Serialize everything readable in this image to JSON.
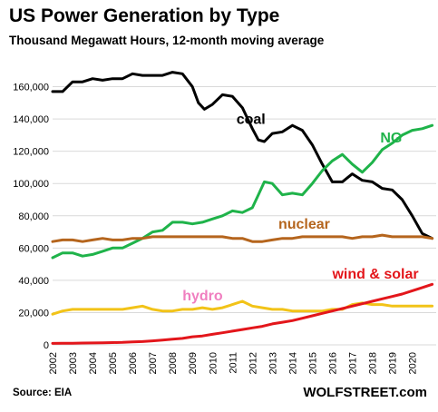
{
  "title": "US Power Generation by Type",
  "subtitle": "Thousand Megawatt Hours, 12-month moving average",
  "source": "Source: EIA",
  "brand": "WOLFSTREET.com",
  "chart_data": {
    "type": "line",
    "title": "US Power Generation by Type",
    "subtitle": "Thousand Megawatt Hours, 12-month moving average",
    "ylim": [
      0,
      180000
    ],
    "xlim": [
      2002,
      2021.2
    ],
    "ytick_labels": [
      "0",
      "20,000",
      "40,000",
      "60,000",
      "80,000",
      "100,000",
      "120,000",
      "140,000",
      "160,000"
    ],
    "ytick_values": [
      0,
      20000,
      40000,
      60000,
      80000,
      100000,
      120000,
      140000,
      160000
    ],
    "xtick_labels": [
      "2002",
      "2003",
      "2004",
      "2005",
      "2006",
      "2007",
      "2008",
      "2009",
      "2010",
      "2011",
      "2012",
      "2013",
      "2014",
      "2015",
      "2016",
      "2017",
      "2018",
      "2019",
      "2020"
    ],
    "grid": true,
    "series": [
      {
        "name": "coal",
        "color": "#000000",
        "x": [
          2002.0,
          2002.5,
          2003.0,
          2003.5,
          2004.0,
          2004.5,
          2005.0,
          2005.5,
          2006.0,
          2006.5,
          2007.0,
          2007.5,
          2008.0,
          2008.5,
          2009.0,
          2009.3,
          2009.6,
          2010.0,
          2010.5,
          2011.0,
          2011.5,
          2012.0,
          2012.3,
          2012.6,
          2013.0,
          2013.5,
          2014.0,
          2014.5,
          2015.0,
          2015.5,
          2016.0,
          2016.5,
          2017.0,
          2017.5,
          2018.0,
          2018.5,
          2019.0,
          2019.5,
          2020.0,
          2020.5,
          2021.0
        ],
        "values": [
          157000,
          157000,
          163000,
          163000,
          165000,
          164000,
          165000,
          165000,
          168000,
          167000,
          167000,
          167000,
          169000,
          168000,
          160000,
          150000,
          146000,
          149000,
          155000,
          154000,
          147000,
          134000,
          127000,
          126000,
          131000,
          132000,
          136000,
          133000,
          124000,
          112000,
          101000,
          101000,
          106000,
          102000,
          101000,
          97000,
          96000,
          90000,
          80000,
          69000,
          66000
        ]
      },
      {
        "name": "NG",
        "color": "#1fb34a",
        "x": [
          2002.0,
          2002.5,
          2003.0,
          2003.5,
          2004.0,
          2004.5,
          2005.0,
          2005.5,
          2006.0,
          2006.5,
          2007.0,
          2007.5,
          2008.0,
          2008.5,
          2009.0,
          2009.5,
          2010.0,
          2010.5,
          2011.0,
          2011.5,
          2012.0,
          2012.3,
          2012.6,
          2013.0,
          2013.5,
          2014.0,
          2014.5,
          2015.0,
          2015.5,
          2016.0,
          2016.5,
          2017.0,
          2017.5,
          2018.0,
          2018.5,
          2019.0,
          2019.5,
          2020.0,
          2020.5,
          2021.0
        ],
        "values": [
          54000,
          57000,
          57000,
          55000,
          56000,
          58000,
          60000,
          60000,
          63000,
          66000,
          70000,
          71000,
          76000,
          76000,
          75000,
          76000,
          78000,
          80000,
          83000,
          82000,
          85000,
          93000,
          101000,
          100000,
          93000,
          94000,
          93000,
          100000,
          108000,
          114000,
          118000,
          112000,
          107000,
          113000,
          121000,
          125000,
          130000,
          133000,
          134000,
          136000
        ]
      },
      {
        "name": "nuclear",
        "color": "#b5651d",
        "x": [
          2002.0,
          2002.5,
          2003.0,
          2003.5,
          2004.0,
          2004.5,
          2005.0,
          2005.5,
          2006.0,
          2006.5,
          2007.0,
          2007.5,
          2008.0,
          2008.5,
          2009.0,
          2009.5,
          2010.0,
          2010.5,
          2011.0,
          2011.5,
          2012.0,
          2012.5,
          2013.0,
          2013.5,
          2014.0,
          2014.5,
          2015.0,
          2015.5,
          2016.0,
          2016.5,
          2017.0,
          2017.5,
          2018.0,
          2018.5,
          2019.0,
          2019.5,
          2020.0,
          2020.5,
          2021.0
        ],
        "values": [
          64000,
          65000,
          65000,
          64000,
          65000,
          66000,
          65000,
          65000,
          66000,
          66000,
          67000,
          67000,
          67000,
          67000,
          67000,
          67000,
          67000,
          67000,
          66000,
          66000,
          64000,
          64000,
          65000,
          66000,
          66000,
          67000,
          67000,
          67000,
          67000,
          67000,
          66000,
          67000,
          67000,
          68000,
          67000,
          67000,
          67000,
          67000,
          66000
        ]
      },
      {
        "name": "hydro",
        "color": "#f2c318",
        "x": [
          2002.0,
          2002.5,
          2003.0,
          2003.5,
          2004.0,
          2004.5,
          2005.0,
          2005.5,
          2006.0,
          2006.5,
          2007.0,
          2007.5,
          2008.0,
          2008.5,
          2009.0,
          2009.5,
          2010.0,
          2010.5,
          2011.0,
          2011.5,
          2012.0,
          2012.5,
          2013.0,
          2013.5,
          2014.0,
          2014.5,
          2015.0,
          2015.5,
          2016.0,
          2016.5,
          2017.0,
          2017.5,
          2018.0,
          2018.5,
          2019.0,
          2019.5,
          2020.0,
          2020.5,
          2021.0
        ],
        "values": [
          19000,
          21000,
          22000,
          22000,
          22000,
          22000,
          22000,
          22000,
          23000,
          24000,
          22000,
          21000,
          21000,
          22000,
          22000,
          23000,
          22000,
          23000,
          25000,
          27000,
          24000,
          23000,
          22000,
          22000,
          21000,
          21000,
          21000,
          21000,
          22000,
          22000,
          25000,
          26000,
          25000,
          25000,
          24000,
          24000,
          24000,
          24000,
          24000
        ]
      },
      {
        "name": "wind & solar",
        "color": "#e3161b",
        "x": [
          2002.0,
          2002.5,
          2003.0,
          2003.5,
          2004.0,
          2004.5,
          2005.0,
          2005.5,
          2006.0,
          2006.5,
          2007.0,
          2007.5,
          2008.0,
          2008.5,
          2009.0,
          2009.5,
          2010.0,
          2010.5,
          2011.0,
          2011.5,
          2012.0,
          2012.5,
          2013.0,
          2013.5,
          2014.0,
          2014.5,
          2015.0,
          2015.5,
          2016.0,
          2016.5,
          2017.0,
          2017.5,
          2018.0,
          2018.5,
          2019.0,
          2019.5,
          2020.0,
          2020.5,
          2021.0
        ],
        "values": [
          900,
          1000,
          1000,
          1100,
          1200,
          1300,
          1400,
          1500,
          1800,
          2000,
          2500,
          3000,
          3500,
          4000,
          5000,
          5500,
          6500,
          7500,
          8500,
          9500,
          10500,
          11500,
          13000,
          14000,
          15000,
          16500,
          18000,
          19500,
          21000,
          22500,
          24000,
          25500,
          27000,
          28500,
          30000,
          31500,
          33500,
          35500,
          37500
        ]
      }
    ],
    "annotations": [
      {
        "text": "coal",
        "series": "coal"
      },
      {
        "text": "NG",
        "series": "NG"
      },
      {
        "text": "nuclear",
        "series": "nuclear"
      },
      {
        "text": "hydro",
        "series": "hydro",
        "color": "#f07fc0"
      },
      {
        "text": "wind & solar",
        "series": "wind & solar"
      }
    ]
  }
}
